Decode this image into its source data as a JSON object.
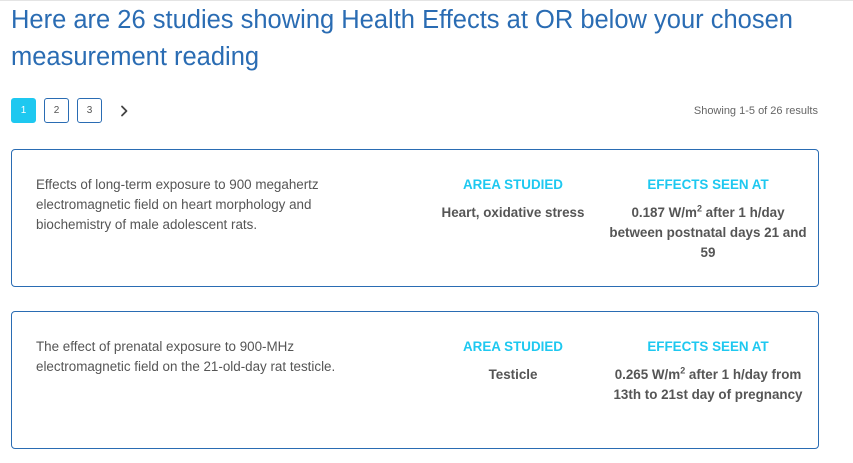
{
  "header": {
    "title": "Here are 26 studies showing Health Effects at OR below your chosen measurement reading"
  },
  "pagination": {
    "pages": [
      "1",
      "2",
      "3"
    ],
    "current": "1",
    "next_icon": "chevron-right-icon",
    "results_text": "Showing 1-5 of 26 results"
  },
  "colors": {
    "title": "#2a6cb3",
    "accent": "#1ec8f0",
    "border": "#2a6cb3"
  },
  "studies": [
    {
      "description": "Effects of long-term exposure to 900 megahertz electromagnetic field on heart morphology and biochemistry of male adolescent rats.",
      "area_heading": "AREA STUDIED",
      "area": "Heart, oxidative stress",
      "effects_heading": "EFFECTS SEEN AT",
      "effect_value": "0.187 W/m",
      "effect_sup": "2",
      "effect_rest": " after 1 h/day between postnatal days 21 and 59"
    },
    {
      "description": "The effect of prenatal exposure to 900-MHz electromagnetic field on the 21-old-day rat testicle.",
      "area_heading": "AREA STUDIED",
      "area": "Testicle",
      "effects_heading": "EFFECTS SEEN AT",
      "effect_value": "0.265 W/m",
      "effect_sup": "2",
      "effect_rest": " after 1 h/day from 13th to 21st day of pregnancy"
    }
  ]
}
